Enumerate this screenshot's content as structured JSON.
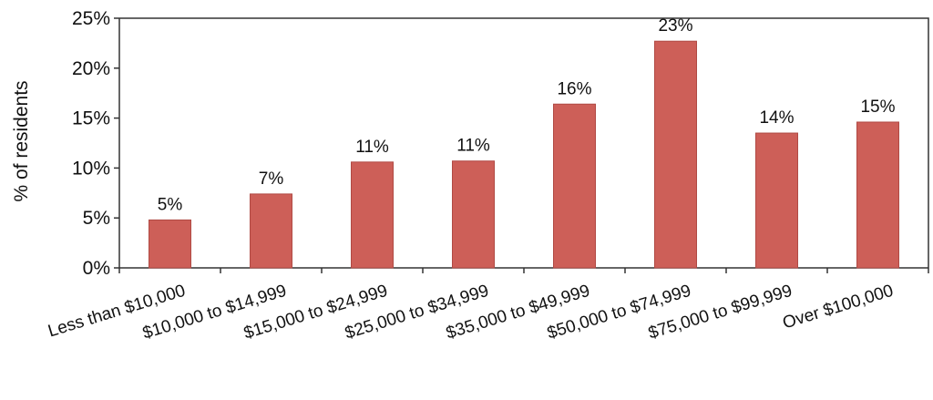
{
  "chart_data": {
    "type": "bar",
    "categories": [
      "Less than $10,000",
      "$10,000 to $14,999",
      "$15,000 to $24,999",
      "$25,000 to $34,999",
      "$35,000 to $49,999",
      "$50,000 to $74,999",
      "$75,000 to $99,999",
      "Over $100,000"
    ],
    "values": [
      4.8,
      7.4,
      10.6,
      10.7,
      16.4,
      22.7,
      13.5,
      14.6
    ],
    "data_labels": [
      "5%",
      "7%",
      "11%",
      "11%",
      "16%",
      "23%",
      "14%",
      "15%"
    ],
    "title": "",
    "xlabel": "",
    "ylabel": "% of residents",
    "ylim": [
      0,
      25
    ],
    "yticks": [
      "0%",
      "5%",
      "10%",
      "15%",
      "20%",
      "25%"
    ],
    "ytick_values": [
      0,
      5,
      10,
      15,
      20,
      25
    ],
    "grid": false,
    "legend": "none",
    "bar_color": "#cd5f58",
    "bar_edge_color": "#b04a44",
    "axis_color": "#333333"
  }
}
